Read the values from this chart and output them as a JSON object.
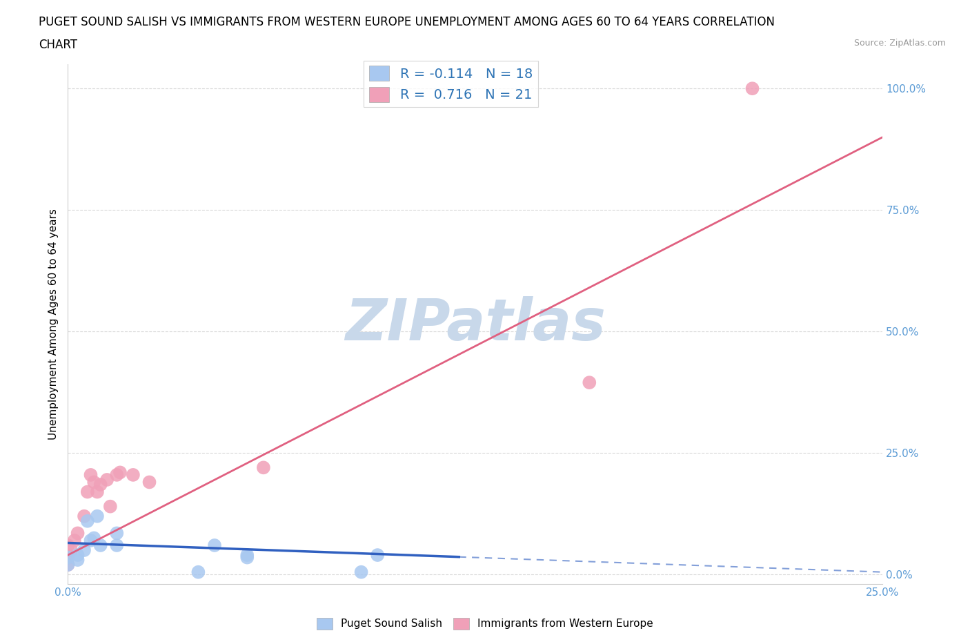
{
  "title_line1": "PUGET SOUND SALISH VS IMMIGRANTS FROM WESTERN EUROPE UNEMPLOYMENT AMONG AGES 60 TO 64 YEARS CORRELATION",
  "title_line2": "CHART",
  "source_text": "Source: ZipAtlas.com",
  "ylabel": "Unemployment Among Ages 60 to 64 years",
  "xlim": [
    0.0,
    0.25
  ],
  "ylim": [
    -0.02,
    1.05
  ],
  "xticks": [
    0.0,
    0.05,
    0.1,
    0.15,
    0.2,
    0.25
  ],
  "xticklabels": [
    "0.0%",
    "",
    "",
    "",
    "",
    "25.0%"
  ],
  "yticks": [
    0.0,
    0.25,
    0.5,
    0.75,
    1.0
  ],
  "yticklabels": [
    "0.0%",
    "25.0%",
    "50.0%",
    "75.0%",
    "100.0%"
  ],
  "blue_color": "#a8c8f0",
  "pink_color": "#f0a0b8",
  "blue_line_color": "#3060c0",
  "pink_line_color": "#e06080",
  "R_blue": -0.114,
  "N_blue": 18,
  "R_pink": 0.716,
  "N_pink": 21,
  "legend_text_color": "#2e74b5",
  "watermark": "ZIPatlas",
  "watermark_color": "#c8d8ea",
  "blue_scatter_x": [
    0.0,
    0.0,
    0.003,
    0.003,
    0.005,
    0.006,
    0.007,
    0.008,
    0.009,
    0.01,
    0.015,
    0.015,
    0.04,
    0.045,
    0.055,
    0.055,
    0.09,
    0.095
  ],
  "blue_scatter_y": [
    0.035,
    0.02,
    0.04,
    0.03,
    0.05,
    0.11,
    0.07,
    0.075,
    0.12,
    0.06,
    0.085,
    0.06,
    0.005,
    0.06,
    0.04,
    0.035,
    0.005,
    0.04
  ],
  "pink_scatter_x": [
    0.0,
    0.0,
    0.0,
    0.001,
    0.002,
    0.003,
    0.005,
    0.006,
    0.007,
    0.008,
    0.009,
    0.01,
    0.012,
    0.013,
    0.015,
    0.016,
    0.02,
    0.025,
    0.06,
    0.16,
    0.21
  ],
  "pink_scatter_y": [
    0.02,
    0.04,
    0.06,
    0.05,
    0.07,
    0.085,
    0.12,
    0.17,
    0.205,
    0.19,
    0.17,
    0.185,
    0.195,
    0.14,
    0.205,
    0.21,
    0.205,
    0.19,
    0.22,
    0.395,
    1.0
  ],
  "blue_line_x0": 0.0,
  "blue_line_x1": 0.25,
  "blue_line_y0": 0.065,
  "blue_line_y1": 0.005,
  "pink_line_x0": 0.0,
  "pink_line_x1": 0.25,
  "pink_line_y0": 0.04,
  "pink_line_y1": 0.9,
  "grid_color": "#d9d9d9",
  "grid_style": "--",
  "background_color": "#ffffff",
  "title_fontsize": 12,
  "axis_label_fontsize": 11,
  "tick_fontsize": 11,
  "tick_color": "#5b9bd5"
}
